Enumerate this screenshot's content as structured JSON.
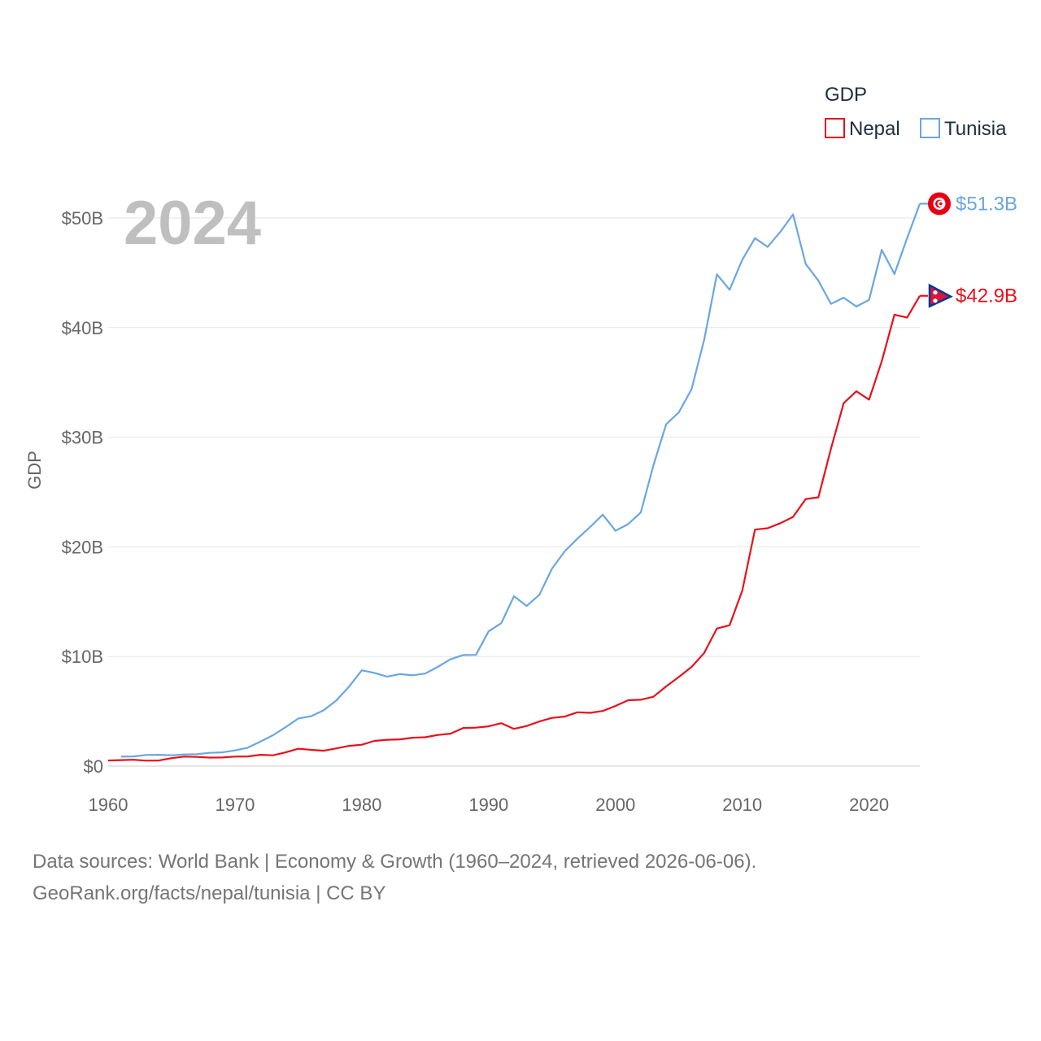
{
  "chart_data": {
    "type": "line",
    "title": "GDP",
    "ylabel": "GDP",
    "xlabel": "",
    "current_year": "2024",
    "xlim": [
      1960,
      2024
    ],
    "ylim": [
      0,
      50000000000
    ],
    "x_ticks": [
      1960,
      1970,
      1980,
      1990,
      2000,
      2010,
      2020
    ],
    "y_ticks": [
      {
        "value": 0,
        "label": "$0"
      },
      {
        "value": 10000000000,
        "label": "$10B"
      },
      {
        "value": 20000000000,
        "label": "$20B"
      },
      {
        "value": 30000000000,
        "label": "$30B"
      },
      {
        "value": 40000000000,
        "label": "$40B"
      },
      {
        "value": 50000000000,
        "label": "$50B"
      }
    ],
    "legend": {
      "title": "GDP",
      "position": "top-right"
    },
    "series": [
      {
        "name": "Nepal",
        "color": "#e8101b",
        "end_label": "$42.9B",
        "flag_icon": "nepal-flag-icon",
        "x": [
          1960,
          1961,
          1962,
          1963,
          1964,
          1965,
          1966,
          1967,
          1968,
          1969,
          1970,
          1971,
          1972,
          1973,
          1974,
          1975,
          1976,
          1977,
          1978,
          1979,
          1980,
          1981,
          1982,
          1983,
          1984,
          1985,
          1986,
          1987,
          1988,
          1989,
          1990,
          1991,
          1992,
          1993,
          1994,
          1995,
          1996,
          1997,
          1998,
          1999,
          2000,
          2001,
          2002,
          2003,
          2004,
          2005,
          2006,
          2007,
          2008,
          2009,
          2010,
          2011,
          2012,
          2013,
          2014,
          2015,
          2016,
          2017,
          2018,
          2019,
          2020,
          2021,
          2022,
          2023,
          2024
        ],
        "values": [
          0.51,
          0.55,
          0.58,
          0.5,
          0.51,
          0.73,
          0.87,
          0.84,
          0.78,
          0.79,
          0.87,
          0.88,
          1.03,
          0.99,
          1.25,
          1.59,
          1.48,
          1.4,
          1.62,
          1.85,
          1.95,
          2.3,
          2.4,
          2.44,
          2.59,
          2.63,
          2.84,
          2.96,
          3.48,
          3.51,
          3.63,
          3.92,
          3.4,
          3.66,
          4.07,
          4.4,
          4.52,
          4.91,
          4.86,
          5.03,
          5.49,
          6.01,
          6.05,
          6.33,
          7.27,
          8.13,
          9.04,
          10.33,
          12.55,
          12.85,
          16.0,
          21.57,
          21.7,
          22.16,
          22.73,
          24.36,
          24.52,
          28.97,
          33.11,
          34.19,
          33.43,
          36.93,
          41.18,
          40.91,
          42.9
        ]
      },
      {
        "name": "Tunisia",
        "color": "#6aa6e0",
        "end_label": "$51.3B",
        "flag_icon": "tunisia-flag-icon",
        "x": [
          1961,
          1962,
          1963,
          1964,
          1965,
          1966,
          1967,
          1968,
          1969,
          1970,
          1971,
          1972,
          1973,
          1974,
          1975,
          1976,
          1977,
          1978,
          1979,
          1980,
          1981,
          1982,
          1983,
          1984,
          1985,
          1986,
          1987,
          1988,
          1989,
          1990,
          1991,
          1992,
          1993,
          1994,
          1995,
          1996,
          1997,
          1998,
          1999,
          2000,
          2001,
          2002,
          2003,
          2004,
          2005,
          2006,
          2007,
          2008,
          2009,
          2010,
          2011,
          2012,
          2013,
          2014,
          2015,
          2016,
          2017,
          2018,
          2019,
          2020,
          2021,
          2022,
          2023,
          2024
        ],
        "values": [
          0.87,
          0.88,
          1.02,
          1.03,
          0.99,
          1.06,
          1.09,
          1.21,
          1.25,
          1.43,
          1.68,
          2.23,
          2.82,
          3.55,
          4.35,
          4.55,
          5.1,
          6.0,
          7.26,
          8.74,
          8.5,
          8.16,
          8.4,
          8.28,
          8.44,
          9.06,
          9.75,
          10.13,
          10.15,
          12.29,
          13.04,
          15.5,
          14.61,
          15.63,
          18.03,
          19.59,
          20.75,
          21.81,
          22.94,
          21.47,
          22.07,
          23.14,
          27.45,
          31.18,
          32.27,
          34.38,
          38.91,
          44.86,
          43.45,
          46.19,
          48.16,
          47.36,
          48.73,
          50.33,
          45.8,
          44.27,
          42.16,
          42.73,
          41.92,
          42.53,
          47.09,
          44.89,
          48.16,
          51.3
        ]
      }
    ]
  },
  "footer": {
    "sources": "Data sources: World Bank | Economy & Growth (1960–2024, retrieved 2026-06-06).",
    "credit": "GeoRank.org/facts/nepal/tunisia | CC BY"
  }
}
